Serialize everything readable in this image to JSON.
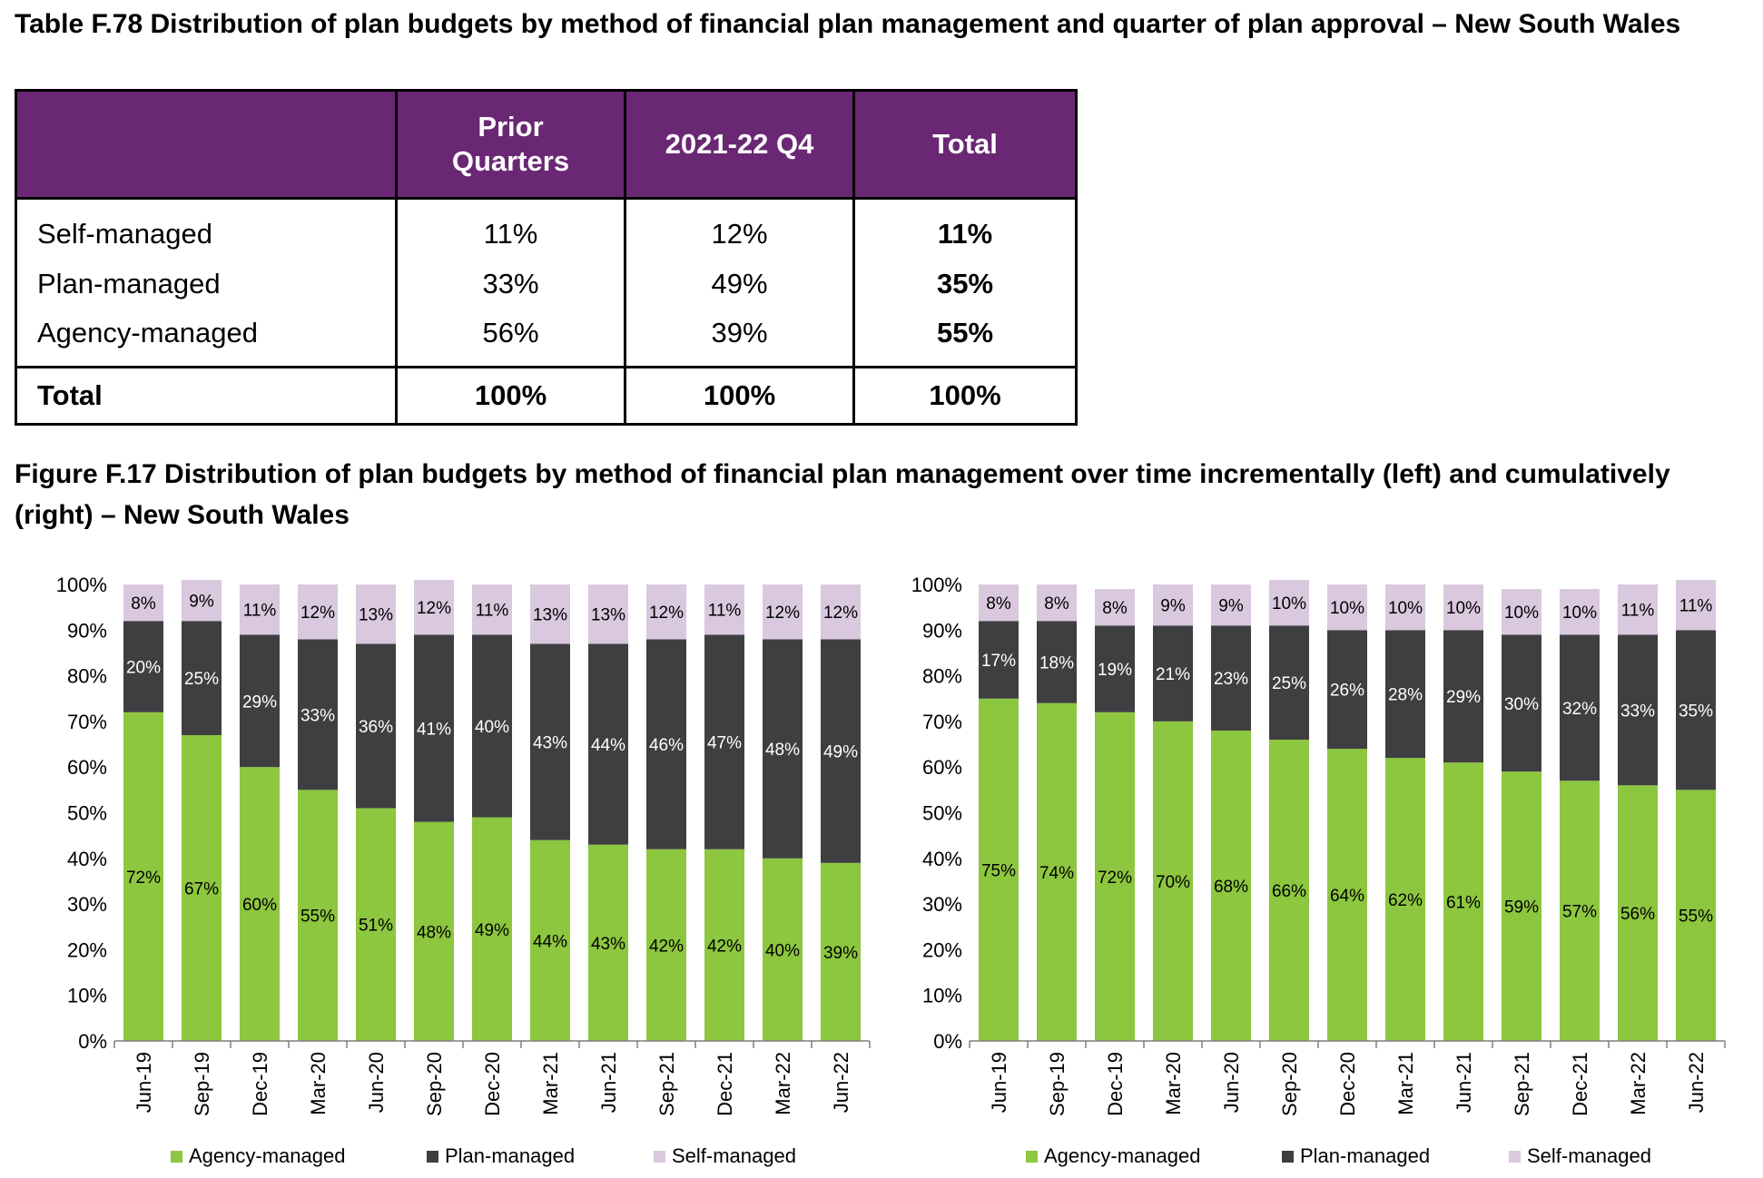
{
  "table": {
    "title": "Table F.78 Distribution of plan budgets by method of financial plan management and quarter of plan approval – New South Wales",
    "columns": [
      "",
      "Prior Quarters",
      "2021-22 Q4",
      "Total"
    ],
    "rows": [
      {
        "label": "Self-managed",
        "prior": "11%",
        "q4": "12%",
        "total": "11%"
      },
      {
        "label": "Plan-managed",
        "prior": "33%",
        "q4": "49%",
        "total": "35%"
      },
      {
        "label": "Agency-managed",
        "prior": "56%",
        "q4": "39%",
        "total": "55%"
      }
    ],
    "total_row": {
      "label": "Total",
      "prior": "100%",
      "q4": "100%",
      "total": "100%"
    }
  },
  "figure": {
    "title": "Figure F.17 Distribution of plan budgets by method of financial plan management over time incrementally (left) and cumulatively (right) – New South Wales"
  },
  "colors": {
    "agency": "#8dc63f",
    "plan": "#3f3f42",
    "self": "#d9c8de"
  },
  "chart_data": [
    {
      "type": "bar",
      "stacked": true,
      "categories": [
        "Jun-19",
        "Sep-19",
        "Dec-19",
        "Mar-20",
        "Jun-20",
        "Sep-20",
        "Dec-20",
        "Mar-21",
        "Jun-21",
        "Sep-21",
        "Dec-21",
        "Mar-22",
        "Jun-22"
      ],
      "series": [
        {
          "name": "Agency-managed",
          "values": [
            72,
            67,
            60,
            55,
            51,
            48,
            49,
            44,
            43,
            42,
            42,
            40,
            39
          ]
        },
        {
          "name": "Plan-managed",
          "values": [
            20,
            25,
            29,
            33,
            36,
            41,
            40,
            43,
            44,
            46,
            47,
            48,
            49
          ]
        },
        {
          "name": "Self-managed",
          "values": [
            8,
            9,
            11,
            12,
            13,
            12,
            11,
            13,
            13,
            12,
            11,
            12,
            12
          ]
        }
      ],
      "yticks": [
        "0%",
        "10%",
        "20%",
        "30%",
        "40%",
        "50%",
        "60%",
        "70%",
        "80%",
        "90%",
        "100%"
      ],
      "ylim": [
        0,
        100
      ],
      "legend": "bottom"
    },
    {
      "type": "bar",
      "stacked": true,
      "categories": [
        "Jun-19",
        "Sep-19",
        "Dec-19",
        "Mar-20",
        "Jun-20",
        "Sep-20",
        "Dec-20",
        "Mar-21",
        "Jun-21",
        "Sep-21",
        "Dec-21",
        "Mar-22",
        "Jun-22"
      ],
      "series": [
        {
          "name": "Agency-managed",
          "values": [
            75,
            74,
            72,
            70,
            68,
            66,
            64,
            62,
            61,
            59,
            57,
            56,
            55
          ]
        },
        {
          "name": "Plan-managed",
          "values": [
            17,
            18,
            19,
            21,
            23,
            25,
            26,
            28,
            29,
            30,
            32,
            33,
            35
          ]
        },
        {
          "name": "Self-managed",
          "values": [
            8,
            8,
            8,
            9,
            9,
            10,
            10,
            10,
            10,
            10,
            10,
            11,
            11
          ]
        }
      ],
      "yticks": [
        "0%",
        "10%",
        "20%",
        "30%",
        "40%",
        "50%",
        "60%",
        "70%",
        "80%",
        "90%",
        "100%"
      ],
      "ylim": [
        0,
        100
      ],
      "legend": "bottom"
    }
  ]
}
